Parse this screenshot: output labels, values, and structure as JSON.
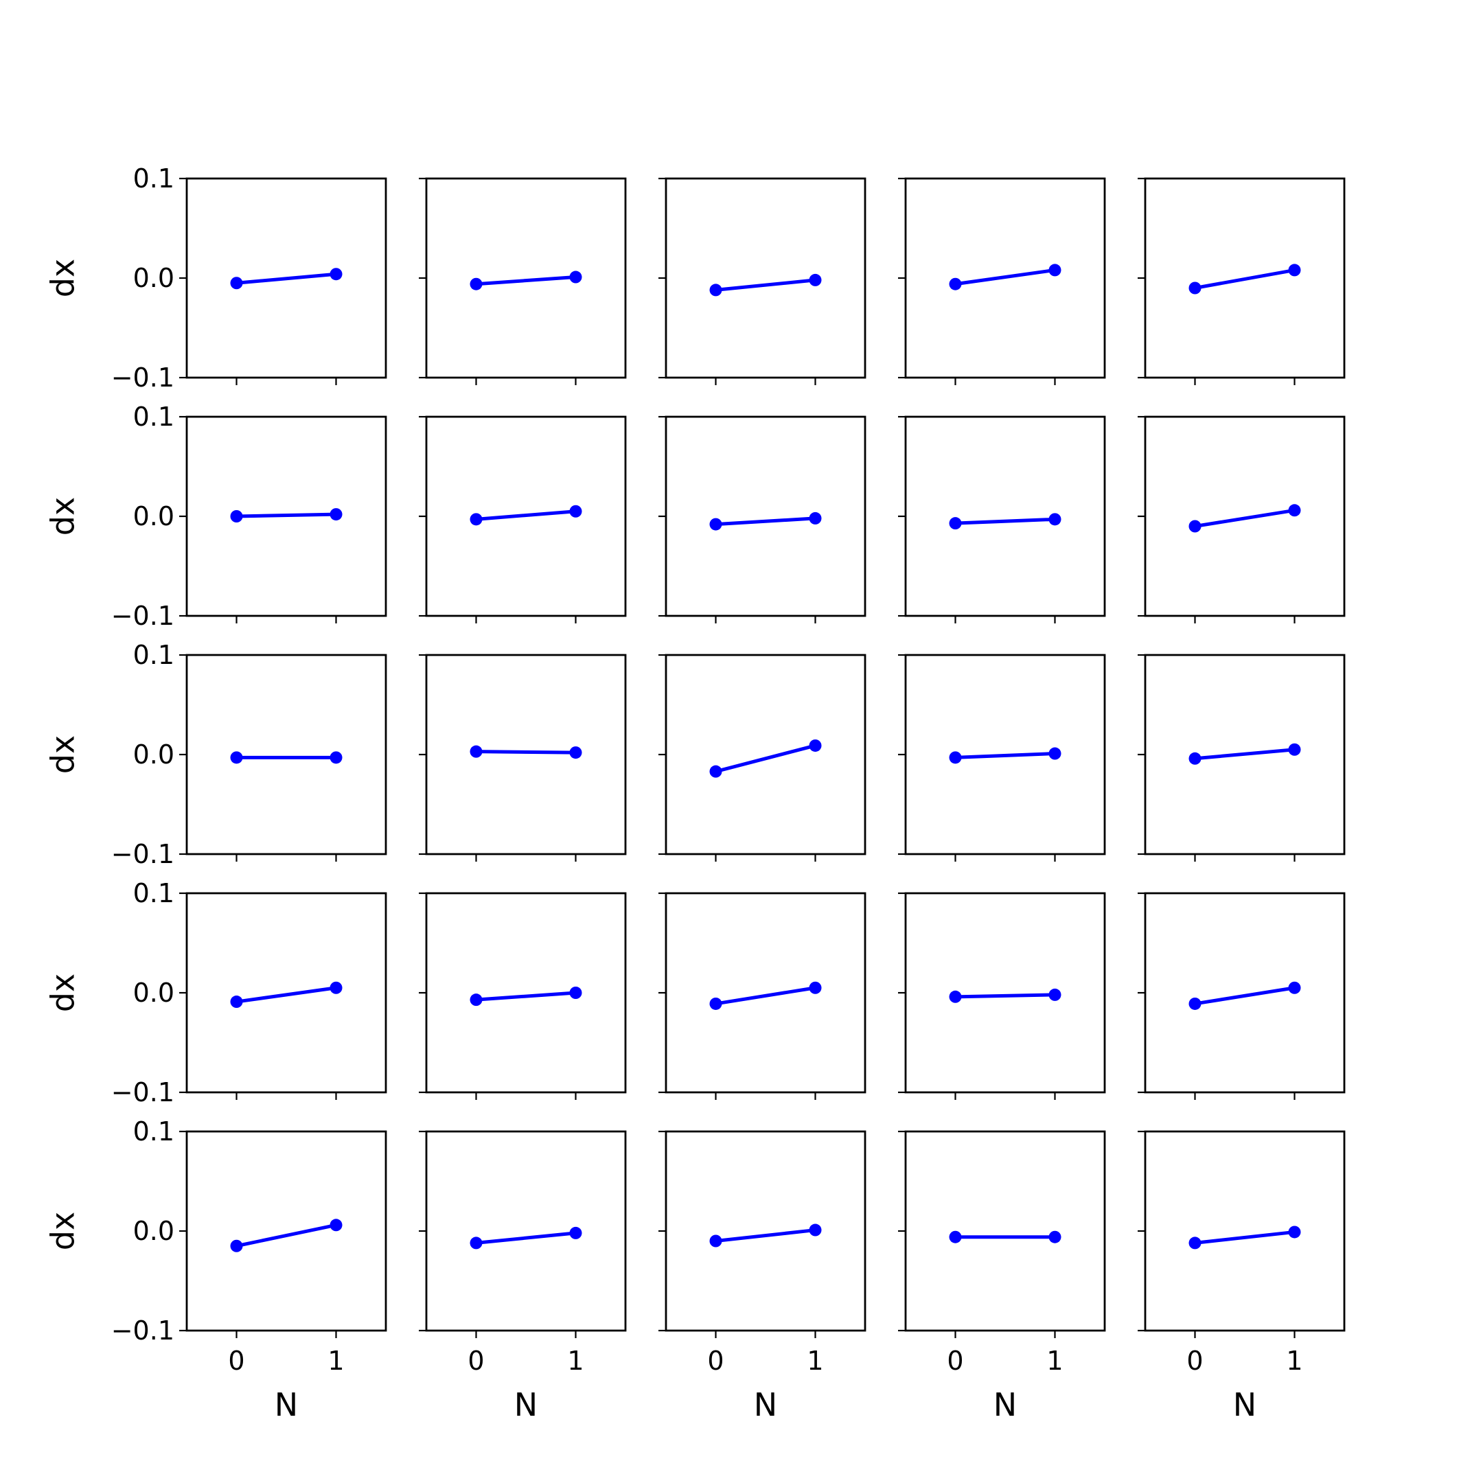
{
  "chart_data": {
    "type": "line",
    "layout": {
      "rows": 5,
      "cols": 5
    },
    "x": [
      0,
      1
    ],
    "xlim": [
      -0.5,
      1.5
    ],
    "ylim": [
      -0.1,
      0.1
    ],
    "xticks": [
      "0",
      "1"
    ],
    "yticks": [
      "−0.1",
      "0.0",
      "0.1"
    ],
    "xlabel": "N",
    "ylabel": "dx",
    "grid": false,
    "line_color": "#0000ff",
    "marker": "circle",
    "panels": [
      {
        "values": [
          -0.005,
          0.004
        ]
      },
      {
        "values": [
          -0.006,
          0.001
        ]
      },
      {
        "values": [
          -0.012,
          -0.002
        ]
      },
      {
        "values": [
          -0.006,
          0.008
        ]
      },
      {
        "values": [
          -0.01,
          0.008
        ]
      },
      {
        "values": [
          0.0,
          0.002
        ]
      },
      {
        "values": [
          -0.003,
          0.005
        ]
      },
      {
        "values": [
          -0.008,
          -0.002
        ]
      },
      {
        "values": [
          -0.007,
          -0.003
        ]
      },
      {
        "values": [
          -0.01,
          0.006
        ]
      },
      {
        "values": [
          -0.003,
          -0.003
        ]
      },
      {
        "values": [
          0.003,
          0.002
        ]
      },
      {
        "values": [
          -0.017,
          0.009
        ]
      },
      {
        "values": [
          -0.003,
          0.001
        ]
      },
      {
        "values": [
          -0.004,
          0.005
        ]
      },
      {
        "values": [
          -0.009,
          0.005
        ]
      },
      {
        "values": [
          -0.007,
          0.0
        ]
      },
      {
        "values": [
          -0.011,
          0.005
        ]
      },
      {
        "values": [
          -0.004,
          -0.002
        ]
      },
      {
        "values": [
          -0.011,
          0.005
        ]
      },
      {
        "values": [
          -0.015,
          0.006
        ]
      },
      {
        "values": [
          -0.012,
          -0.002
        ]
      },
      {
        "values": [
          -0.01,
          0.001
        ]
      },
      {
        "values": [
          -0.006,
          -0.006
        ]
      },
      {
        "values": [
          -0.012,
          -0.001
        ]
      }
    ]
  }
}
